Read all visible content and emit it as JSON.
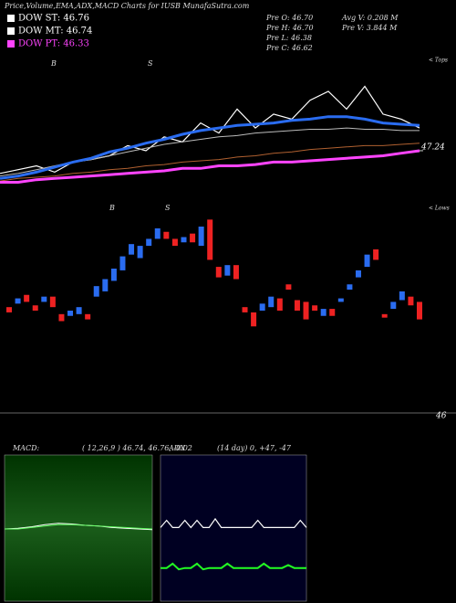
{
  "header": {
    "title": "Price,Volume,EMA,ADX,MACD Charts for IUSB MunafaSutra.com",
    "legend": [
      {
        "label": "DOW ST: 46.76",
        "color": "#ffffff"
      },
      {
        "label": "DOW MT: 46.74",
        "color": "#ffffff"
      },
      {
        "label": "DOW PT: 46.33",
        "color": "#ff44ff"
      }
    ],
    "prev": [
      "Pre  O: 46.70",
      "Pre  H: 46.70",
      "Pre  L: 46.38",
      "Pre  C: 46.62",
      "Avg  V: 0.208  M",
      "Pre  V: 3.844  M"
    ]
  },
  "markers": {
    "top": [
      "B",
      "S"
    ],
    "bottom": [
      "B",
      "S"
    ],
    "tops_label": "< Tops",
    "lows_label": "< Lows"
  },
  "chart_data": [
    {
      "type": "line",
      "ylim": [
        46.95,
        48.0
      ],
      "yticks": [
        47.24
      ],
      "series": [
        {
          "name": "price",
          "color": "#ffffff",
          "width": 1.2,
          "values": [
            47.06,
            47.09,
            47.12,
            47.07,
            47.15,
            47.17,
            47.2,
            47.28,
            47.24,
            47.35,
            47.31,
            47.46,
            47.38,
            47.57,
            47.42,
            47.53,
            47.49,
            47.64,
            47.71,
            47.57,
            47.75,
            47.53,
            47.49,
            47.42
          ]
        },
        {
          "name": "ema-long",
          "color": "#b06030",
          "width": 1,
          "values": [
            47.0,
            47.02,
            47.03,
            47.04,
            47.06,
            47.07,
            47.09,
            47.1,
            47.12,
            47.13,
            47.15,
            47.16,
            47.17,
            47.19,
            47.2,
            47.22,
            47.23,
            47.25,
            47.26,
            47.27,
            47.28,
            47.28,
            47.29,
            47.3
          ]
        },
        {
          "name": "ema-mid",
          "color": "#bbbbbb",
          "width": 1,
          "values": [
            47.04,
            47.06,
            47.09,
            47.12,
            47.15,
            47.17,
            47.2,
            47.23,
            47.26,
            47.29,
            47.31,
            47.33,
            47.35,
            47.36,
            47.38,
            47.39,
            47.4,
            47.41,
            47.41,
            47.42,
            47.41,
            47.41,
            47.4,
            47.4
          ]
        },
        {
          "name": "ema-short",
          "color": "#2a6cf0",
          "width": 3,
          "values": [
            47.02,
            47.04,
            47.07,
            47.11,
            47.15,
            47.18,
            47.23,
            47.26,
            47.3,
            47.33,
            47.37,
            47.4,
            47.42,
            47.44,
            47.45,
            47.46,
            47.48,
            47.49,
            47.51,
            47.51,
            47.49,
            47.46,
            47.45,
            47.44
          ]
        },
        {
          "name": "dow-pt",
          "color": "#ff44ff",
          "width": 3,
          "values": [
            46.99,
            46.99,
            47.01,
            47.02,
            47.03,
            47.04,
            47.05,
            47.06,
            47.07,
            47.08,
            47.1,
            47.1,
            47.12,
            47.12,
            47.13,
            47.15,
            47.15,
            47.16,
            47.17,
            47.18,
            47.19,
            47.2,
            47.22,
            47.24
          ]
        }
      ]
    },
    {
      "type": "candlestick",
      "ylim": [
        46,
        47.2
      ],
      "yticks": [
        46
      ],
      "up_color": "#2a6cf0",
      "down_color": "#ee2222",
      "candles": [
        {
          "open": 46.62,
          "close": 46.59
        },
        {
          "open": 46.64,
          "close": 46.67
        },
        {
          "open": 46.69,
          "close": 46.65
        },
        {
          "open": 46.63,
          "close": 46.6
        },
        {
          "open": 46.65,
          "close": 46.68
        },
        {
          "open": 46.68,
          "close": 46.62
        },
        {
          "open": 46.58,
          "close": 46.54
        },
        {
          "open": 46.57,
          "close": 46.6
        },
        {
          "open": 46.58,
          "close": 46.62
        },
        {
          "open": 46.58,
          "close": 46.55
        },
        {
          "open": 46.68,
          "close": 46.74
        },
        {
          "open": 46.71,
          "close": 46.78
        },
        {
          "open": 46.77,
          "close": 46.84
        },
        {
          "open": 46.83,
          "close": 46.91
        },
        {
          "open": 46.92,
          "close": 46.98
        },
        {
          "open": 46.9,
          "close": 46.97
        },
        {
          "open": 46.97,
          "close": 47.01
        },
        {
          "open": 47.01,
          "close": 47.07
        },
        {
          "open": 47.05,
          "close": 47.01
        },
        {
          "open": 47.01,
          "close": 46.97
        },
        {
          "open": 46.99,
          "close": 47.02
        },
        {
          "open": 47.04,
          "close": 46.99
        },
        {
          "open": 46.97,
          "close": 47.08
        },
        {
          "open": 47.12,
          "close": 46.89
        },
        {
          "open": 46.85,
          "close": 46.79
        },
        {
          "open": 46.8,
          "close": 46.86
        },
        {
          "open": 46.86,
          "close": 46.78
        },
        {
          "open": 46.62,
          "close": 46.59
        },
        {
          "open": 46.59,
          "close": 46.51
        },
        {
          "open": 46.6,
          "close": 46.64
        },
        {
          "open": 46.62,
          "close": 46.68
        },
        {
          "open": 46.67,
          "close": 46.6
        },
        {
          "open": 46.75,
          "close": 46.72
        },
        {
          "open": 46.66,
          "close": 46.6
        },
        {
          "open": 46.65,
          "close": 46.55
        },
        {
          "open": 46.63,
          "close": 46.6
        },
        {
          "open": 46.57,
          "close": 46.61
        },
        {
          "open": 46.61,
          "close": 46.57
        },
        {
          "open": 46.65,
          "close": 46.67
        },
        {
          "open": 46.72,
          "close": 46.75
        },
        {
          "open": 46.79,
          "close": 46.83
        },
        {
          "open": 46.85,
          "close": 46.92
        },
        {
          "open": 46.95,
          "close": 46.89
        },
        {
          "open": 46.58,
          "close": 46.56
        },
        {
          "open": 46.61,
          "close": 46.65
        },
        {
          "open": 46.66,
          "close": 46.71
        },
        {
          "open": 46.68,
          "close": 46.63
        },
        {
          "open": 46.65,
          "close": 46.55
        }
      ]
    },
    {
      "type": "line",
      "title": "MACD:",
      "subtitle": "( 12,26,9 ) 46.74, 46.76, -0.02",
      "ylim": [
        -1,
        1
      ],
      "series": [
        {
          "name": "macd",
          "color": "#ffffff",
          "width": 1,
          "values": [
            0.0,
            0.01,
            0.03,
            0.06,
            0.08,
            0.07,
            0.05,
            0.04,
            0.02,
            0.01,
            0.0,
            -0.01
          ]
        },
        {
          "name": "signal",
          "color": "#66ff66",
          "width": 1,
          "values": [
            0.0,
            0.0,
            0.02,
            0.04,
            0.06,
            0.06,
            0.05,
            0.04,
            0.03,
            0.02,
            0.01,
            0.0
          ]
        }
      ]
    },
    {
      "type": "line",
      "title": "ADX",
      "subtitle": "(14 day) 0, +47, -47",
      "ylim": [
        0,
        100
      ],
      "series": [
        {
          "name": "adx-plus",
          "color": "#ffffff",
          "width": 1.2,
          "values": [
            51,
            56,
            51,
            51,
            56,
            51,
            56,
            51,
            51,
            57,
            51,
            51,
            51,
            51,
            51,
            51,
            56,
            51,
            51,
            51,
            51,
            51,
            51,
            56,
            51
          ]
        },
        {
          "name": "adx-minus",
          "color": "#22ff22",
          "width": 2,
          "values": [
            23,
            23,
            26,
            22,
            23,
            23,
            26,
            22,
            23,
            23,
            23,
            26,
            23,
            23,
            23,
            23,
            23,
            26,
            23,
            23,
            23,
            25,
            23,
            23,
            23
          ]
        }
      ]
    }
  ]
}
